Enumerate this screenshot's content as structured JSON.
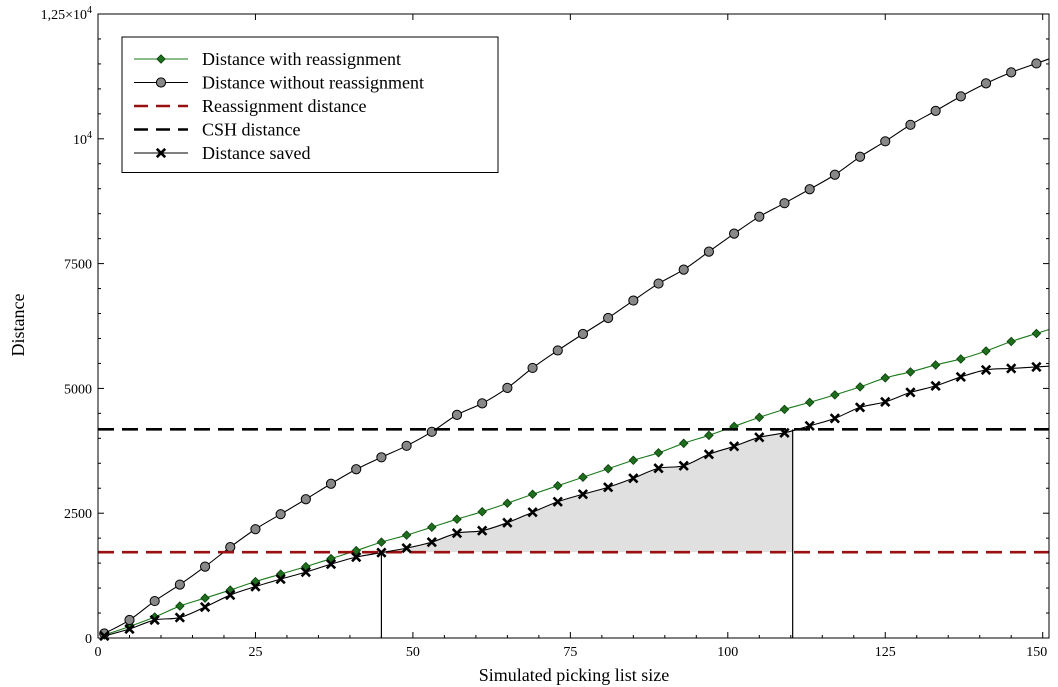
{
  "chart_data": {
    "type": "line",
    "xlabel": "Simulated picking list size",
    "ylabel": "Distance",
    "xlim": [
      0,
      151
    ],
    "ylim": [
      0,
      12500
    ],
    "xticks": [
      {
        "value": 0,
        "label": "0"
      },
      {
        "value": 25,
        "label": "25"
      },
      {
        "value": 50,
        "label": "50"
      },
      {
        "value": 75,
        "label": "75"
      },
      {
        "value": 100,
        "label": "100"
      },
      {
        "value": 125,
        "label": "125"
      },
      {
        "value": 150,
        "label": "150"
      }
    ],
    "yticks": [
      {
        "value": 0,
        "label": "0"
      },
      {
        "value": 2500,
        "label": "2500"
      },
      {
        "value": 5000,
        "label": "5000"
      },
      {
        "value": 7500,
        "label": "7500"
      },
      {
        "value": 10000,
        "label": "10",
        "sup": "4"
      },
      {
        "value": 12500,
        "label": "1,25×10",
        "sup": "4"
      }
    ],
    "legend_position": "top-left",
    "grid": false,
    "x": [
      1,
      5,
      9,
      13,
      17,
      21,
      25,
      29,
      33,
      37,
      41,
      45,
      49,
      53,
      57,
      61,
      65,
      69,
      73,
      77,
      81,
      85,
      89,
      93,
      97,
      101,
      105,
      109,
      113,
      117,
      121,
      125,
      129,
      133,
      137,
      141,
      145,
      149
    ],
    "series": [
      {
        "name": "Distance with reassignment",
        "color": "#1a7a1a",
        "marker": "diamond",
        "marker_fill": "#1e6e1e",
        "values": [
          60,
          230,
          420,
          640,
          800,
          960,
          1130,
          1280,
          1430,
          1590,
          1750,
          1920,
          2060,
          2220,
          2380,
          2530,
          2700,
          2880,
          3050,
          3220,
          3390,
          3560,
          3710,
          3900,
          4060,
          4240,
          4420,
          4580,
          4720,
          4870,
          5030,
          5210,
          5330,
          5470,
          5590,
          5750,
          5940,
          6100
        ]
      },
      {
        "name": "Distance without reassignment",
        "color": "#000000",
        "marker": "circle",
        "marker_fill": "#888888",
        "values": [
          90,
          360,
          740,
          1070,
          1430,
          1820,
          2180,
          2480,
          2780,
          3090,
          3380,
          3620,
          3850,
          4130,
          4470,
          4700,
          5010,
          5410,
          5760,
          6090,
          6410,
          6760,
          7100,
          7380,
          7740,
          8100,
          8440,
          8710,
          8990,
          9280,
          9640,
          9950,
          10280,
          10560,
          10850,
          11110,
          11330,
          11510
        ]
      },
      {
        "name": "Reassignment distance",
        "color": "#9a1010",
        "dash": true,
        "constant": 1720
      },
      {
        "name": "CSH distance",
        "color": "#000000",
        "dash": true,
        "constant": 4180
      },
      {
        "name": "Distance saved",
        "color": "#000000",
        "marker": "x",
        "marker_fill": "#000000",
        "values": [
          40,
          180,
          360,
          410,
          620,
          860,
          1030,
          1180,
          1320,
          1480,
          1620,
          1710,
          1800,
          1920,
          2100,
          2150,
          2310,
          2520,
          2730,
          2880,
          3020,
          3200,
          3400,
          3450,
          3680,
          3840,
          4020,
          4110,
          4250,
          4400,
          4620,
          4730,
          4920,
          5050,
          5230,
          5370,
          5400,
          5430
        ]
      }
    ],
    "vlines": [
      45,
      110.3
    ],
    "shaded_region": {
      "x_start": 45,
      "x_end": 110.3,
      "fill": "#e0e0e0"
    }
  }
}
